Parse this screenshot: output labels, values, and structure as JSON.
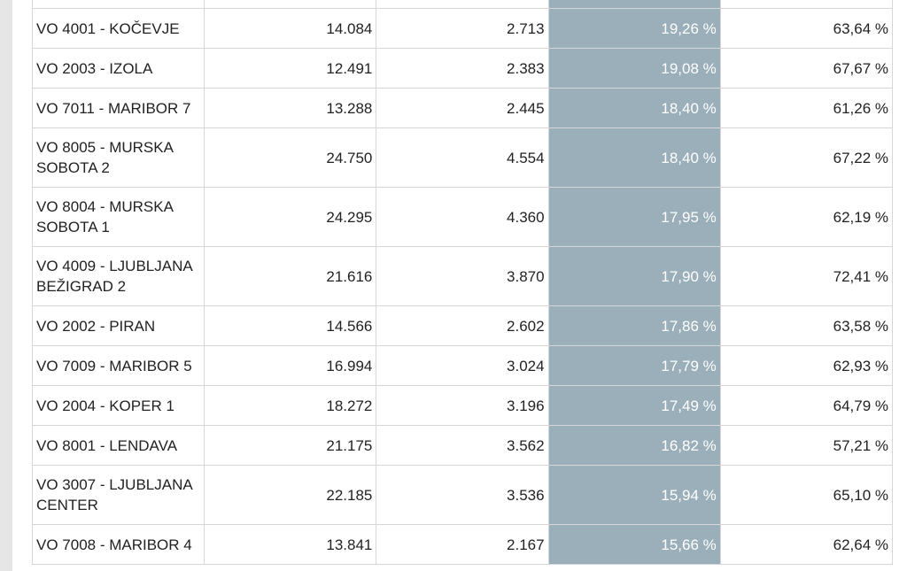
{
  "table": {
    "rows": [
      {
        "name": "VO 4001 - KOČEVJE",
        "v1": "14.084",
        "v2": "2.713",
        "p1": "19,26 %",
        "p2": "63,64 %",
        "lines": 1
      },
      {
        "name": "VO 2003 - IZOLA",
        "v1": "12.491",
        "v2": "2.383",
        "p1": "19,08 %",
        "p2": "67,67 %",
        "lines": 1
      },
      {
        "name": "VO 7011 - MARIBOR 7",
        "v1": "13.288",
        "v2": "2.445",
        "p1": "18,40 %",
        "p2": "61,26 %",
        "lines": 1
      },
      {
        "name": "VO 8005 - MURSKA SOBOTA 2",
        "v1": "24.750",
        "v2": "4.554",
        "p1": "18,40 %",
        "p2": "67,22 %",
        "lines": 2
      },
      {
        "name": "VO 8004 - MURSKA SOBOTA 1",
        "v1": "24.295",
        "v2": "4.360",
        "p1": "17,95 %",
        "p2": "62,19 %",
        "lines": 2
      },
      {
        "name": "VO 4009 - LJUBLJANA BEŽIGRAD 2",
        "v1": "21.616",
        "v2": "3.870",
        "p1": "17,90 %",
        "p2": "72,41 %",
        "lines": 2
      },
      {
        "name": "VO 2002 - PIRAN",
        "v1": "14.566",
        "v2": "2.602",
        "p1": "17,86 %",
        "p2": "63,58 %",
        "lines": 1
      },
      {
        "name": "VO 7009 - MARIBOR 5",
        "v1": "16.994",
        "v2": "3.024",
        "p1": "17,79 %",
        "p2": "62,93 %",
        "lines": 1
      },
      {
        "name": "VO 2004 - KOPER 1",
        "v1": "18.272",
        "v2": "3.196",
        "p1": "17,49 %",
        "p2": "64,79 %",
        "lines": 1
      },
      {
        "name": "VO 8001 - LENDAVA",
        "v1": "21.175",
        "v2": "3.562",
        "p1": "16,82 %",
        "p2": "57,21 %",
        "lines": 1
      },
      {
        "name": "VO 3007 - LJUBLJANA CENTER",
        "v1": "22.185",
        "v2": "3.536",
        "p1": "15,94 %",
        "p2": "65,10 %",
        "lines": 2
      },
      {
        "name": "VO 7008 - MARIBOR 4",
        "v1": "13.841",
        "v2": "2.167",
        "p1": "15,66 %",
        "p2": "62,64 %",
        "lines": 1
      }
    ]
  },
  "colors": {
    "highlight_column": "#9aafba",
    "border": "#d6d6d6",
    "text": "#222222",
    "gutter": "#e6e6e6"
  }
}
